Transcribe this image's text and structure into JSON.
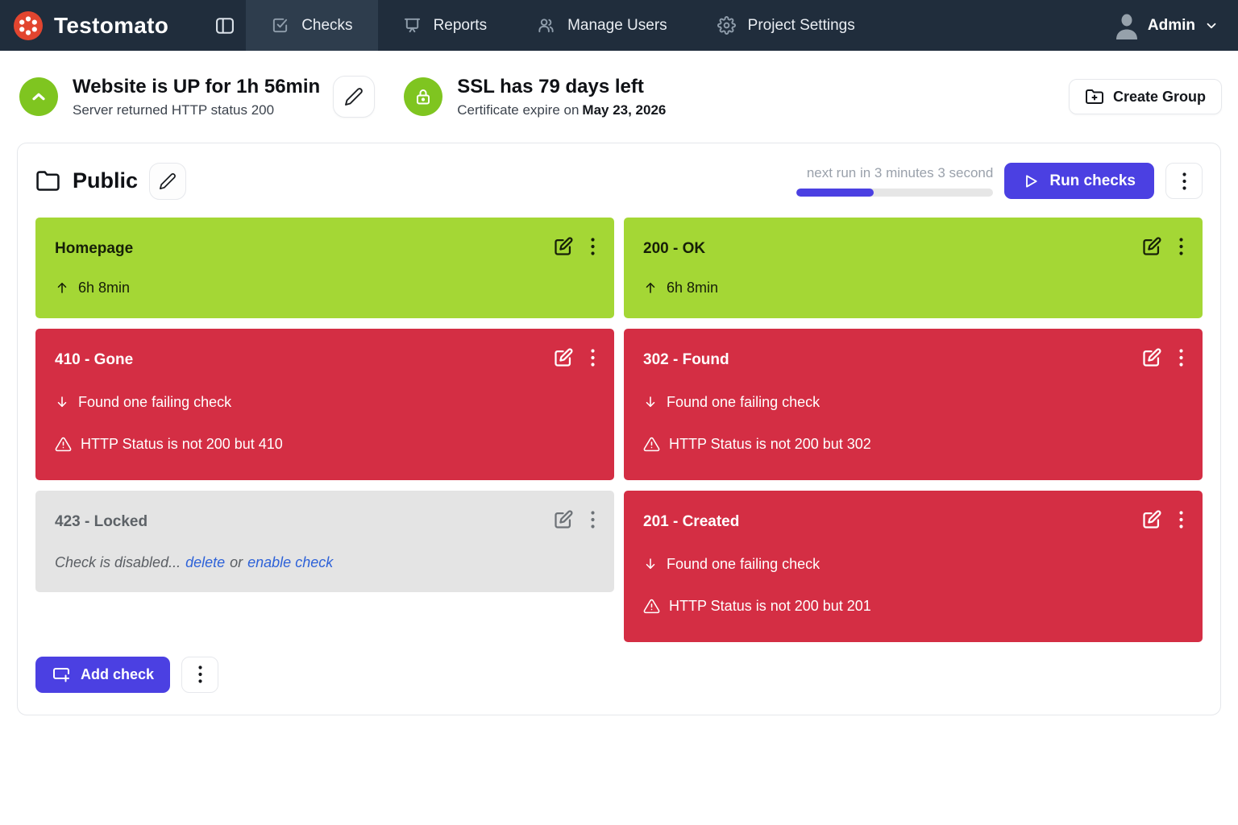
{
  "navbar": {
    "brand": "Testomato",
    "tabs": [
      {
        "label": "Checks",
        "icon": "check-square-icon",
        "active": true
      },
      {
        "label": "Reports",
        "icon": "presentation-icon",
        "active": false
      },
      {
        "label": "Manage Users",
        "icon": "users-icon",
        "active": false
      },
      {
        "label": "Project Settings",
        "icon": "gear-icon",
        "active": false
      }
    ],
    "user_label": "Admin"
  },
  "status_bar": {
    "uptime_title": "Website is UP for 1h 56min",
    "uptime_subtitle": "Server returned HTTP status 200",
    "ssl_title": "SSL has 79 days left",
    "ssl_subtitle_prefix": "Certificate expire on",
    "ssl_expiry_date": "May 23, 2026",
    "create_group_label": "Create Group"
  },
  "group": {
    "name": "Public",
    "next_run_text": "next run in 3 minutes 3 second",
    "progress_percent": 39,
    "run_checks_label": "Run checks",
    "add_check_label": "Add check"
  },
  "checks": [
    {
      "title": "Homepage",
      "status": "up",
      "uptime": "6h 8min"
    },
    {
      "title": "200 - OK",
      "status": "up",
      "uptime": "6h 8min"
    },
    {
      "title": "410 - Gone",
      "status": "down",
      "message": "Found one failing check",
      "warning": "HTTP Status is not 200 but 410"
    },
    {
      "title": "302 - Found",
      "status": "down",
      "message": "Found one failing check",
      "warning": "HTTP Status is not 200 but 302"
    },
    {
      "title": "423 - Locked",
      "status": "disabled",
      "message": "Check is disabled...",
      "delete_link": "delete",
      "or_text": "or",
      "enable_link": "enable check"
    },
    {
      "title": "201 - Created",
      "status": "down",
      "message": "Found one failing check",
      "warning": "HTTP Status is not 200 but 201"
    }
  ],
  "colors": {
    "accent": "#4b40e2",
    "up_green": "#a4d735",
    "down_red": "#d42e44",
    "navbar_bg": "#202d3c",
    "status_circle_green": "#7fc520",
    "link_blue": "#2e62d8"
  }
}
